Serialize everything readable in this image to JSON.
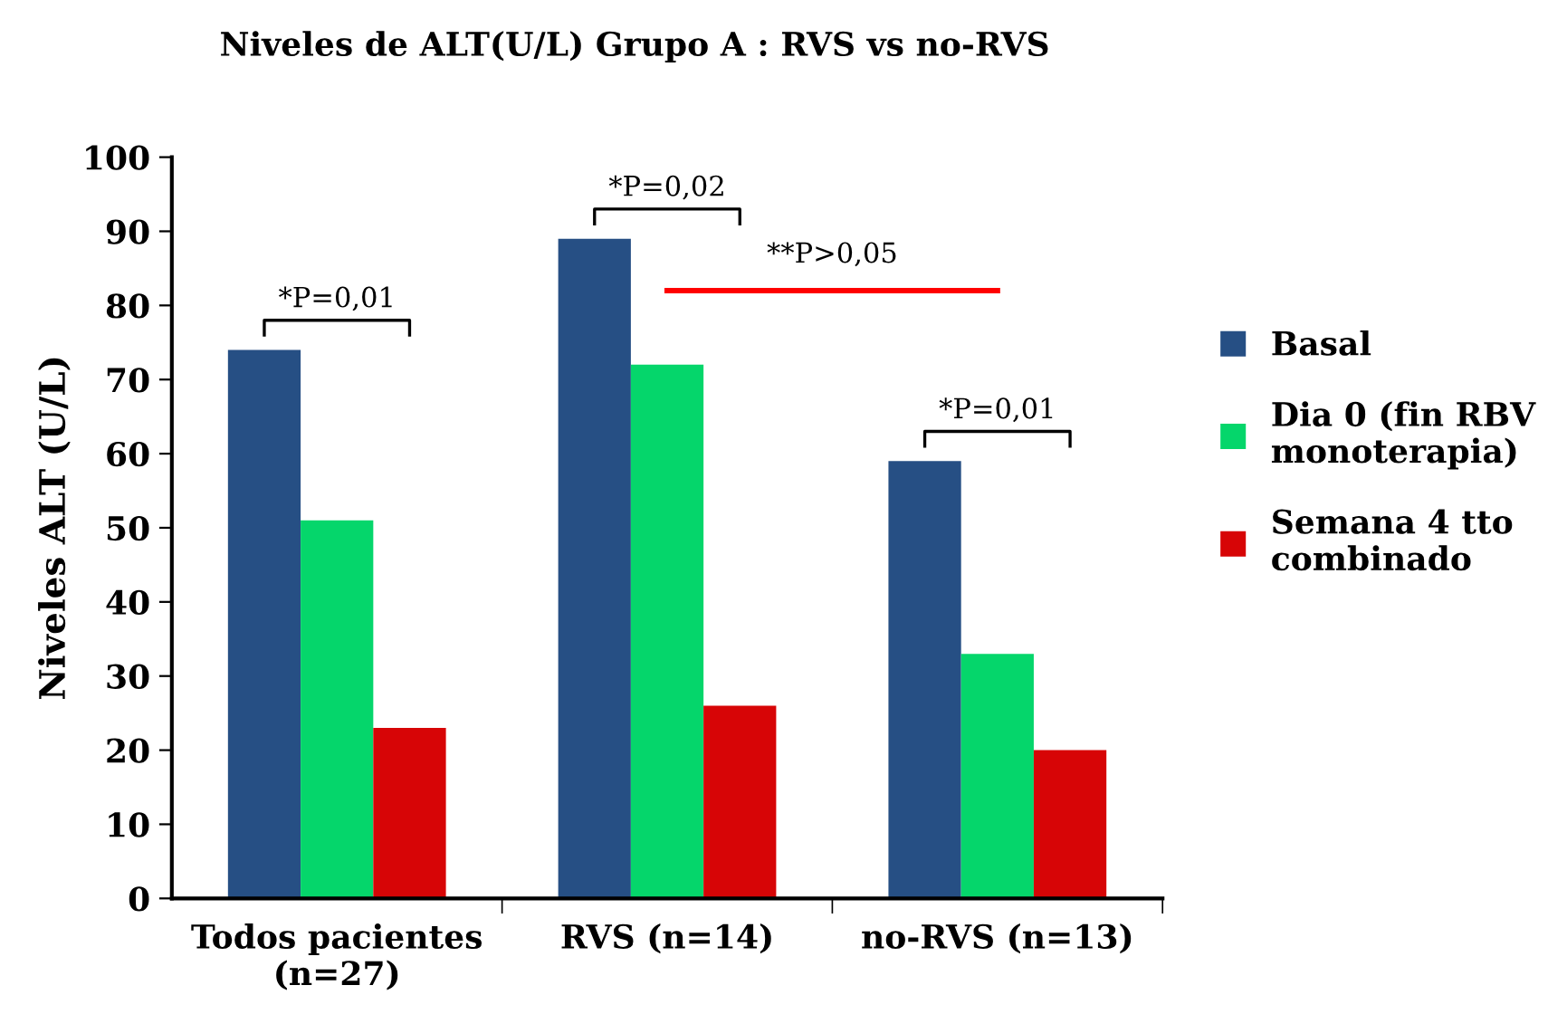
{
  "chart_data": {
    "type": "bar",
    "title": "Niveles de ALT(U/L) Grupo A : RVS vs no-RVS",
    "ylabel": "Niveles ALT (U/L)",
    "categories": [
      "Todos pacientes\n(n=27)",
      "RVS (n=14)",
      "no-RVS (n=13)"
    ],
    "series": [
      {
        "name": "Basal",
        "color": "#264f84",
        "values": [
          74,
          89,
          59
        ]
      },
      {
        "name": "Dia 0 (fin RBV\nmonoterapia)",
        "color": "#05d66b",
        "values": [
          51,
          72,
          33
        ]
      },
      {
        "name": "Semana 4 tto\ncombinado",
        "color": "#d70506",
        "values": [
          23,
          26,
          20
        ]
      },
      {
        "type": "line",
        "color": "#ff0000",
        "values": [
          null,
          82,
          82
        ]
      }
    ],
    "ylim": [
      0,
      100
    ],
    "yticks": [
      0,
      10,
      20,
      30,
      40,
      50,
      60,
      70,
      80,
      90,
      100
    ],
    "grid": false,
    "legend": "right",
    "annotations": [
      "*P=0,01",
      "*P=0,02",
      "*P=0,01",
      "**P>0,05"
    ]
  }
}
